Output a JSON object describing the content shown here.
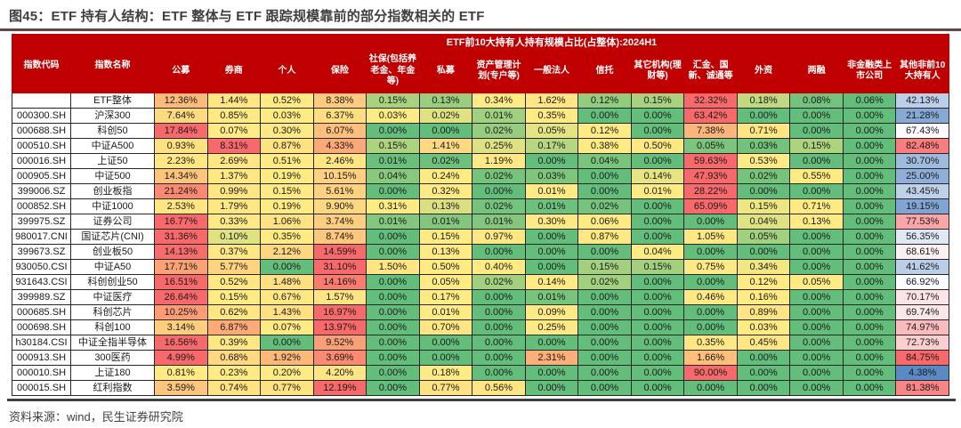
{
  "figure": {
    "title": "图45：ETF 持有人结构：ETF 整体与 ETF 跟踪规模靠前的部分指数相关的 ETF",
    "source": "资料来源：wind，民生证券研究院"
  },
  "chart_data": {
    "type": "table",
    "subtype": "heatmap-table",
    "span_header": "ETF前10大持有人持有规模占比(占整体):2024H1",
    "unit": "%",
    "columns": [
      "指数代码",
      "指数名称",
      "公募",
      "券商",
      "个人",
      "保险",
      "社保(包括养老金、年金等)",
      "私募",
      "资产管理计划(专户等)",
      "一般法人",
      "信托",
      "其它机构(理财等)",
      "汇金、国新、诚通等",
      "外资",
      "两融",
      "非金融类上市公司",
      "其他非前10大持有人"
    ],
    "rows": [
      {
        "code": "",
        "name": "ETF整体",
        "values": [
          12.36,
          1.44,
          0.52,
          8.38,
          0.15,
          0.13,
          0.34,
          1.62,
          0.12,
          0.15,
          32.32,
          0.18,
          0.08,
          0.06,
          42.13
        ]
      },
      {
        "code": "000300.SH",
        "name": "沪深300",
        "values": [
          7.64,
          0.85,
          0.03,
          6.37,
          0.03,
          0.02,
          0.01,
          0.35,
          0.0,
          0.0,
          63.42,
          0.0,
          0.0,
          0.0,
          21.28
        ]
      },
      {
        "code": "000688.SH",
        "name": "科创50",
        "values": [
          17.84,
          0.07,
          0.3,
          6.07,
          0.0,
          0.0,
          0.02,
          0.05,
          0.12,
          0.0,
          7.38,
          0.71,
          0.0,
          0.0,
          67.43
        ]
      },
      {
        "code": "000510.SH",
        "name": "中证A500",
        "values": [
          0.93,
          8.31,
          0.87,
          4.33,
          0.15,
          1.41,
          0.25,
          0.17,
          0.38,
          0.5,
          0.05,
          0.03,
          0.15,
          0.0,
          82.48
        ]
      },
      {
        "code": "000016.SH",
        "name": "上证50",
        "values": [
          2.23,
          2.69,
          0.51,
          2.46,
          0.01,
          0.02,
          1.19,
          0.0,
          0.04,
          0.0,
          59.63,
          0.53,
          0.0,
          0.0,
          30.7
        ]
      },
      {
        "code": "000905.SH",
        "name": "中证500",
        "values": [
          14.34,
          1.37,
          0.19,
          10.15,
          0.04,
          0.24,
          0.02,
          0.03,
          0.0,
          0.14,
          47.93,
          0.02,
          0.55,
          0.0,
          25.0
        ]
      },
      {
        "code": "399006.SZ",
        "name": "创业板指",
        "values": [
          21.24,
          0.99,
          0.15,
          5.61,
          0.0,
          0.32,
          0.0,
          0.01,
          0.0,
          0.01,
          28.22,
          0.0,
          0.0,
          0.0,
          43.45
        ]
      },
      {
        "code": "000852.SH",
        "name": "中证1000",
        "values": [
          2.53,
          1.79,
          0.19,
          9.9,
          0.31,
          0.13,
          0.02,
          0.01,
          0.02,
          0.0,
          65.09,
          0.15,
          0.71,
          0.0,
          19.15
        ]
      },
      {
        "code": "399975.SZ",
        "name": "证券公司",
        "values": [
          16.77,
          0.33,
          1.06,
          3.74,
          0.01,
          0.01,
          0.01,
          0.3,
          0.06,
          0.0,
          0.0,
          0.04,
          0.13,
          0.0,
          77.53
        ]
      },
      {
        "code": "980017.CNI",
        "name": "国证芯片(CNI)",
        "values": [
          31.36,
          0.1,
          0.35,
          8.74,
          0.0,
          0.15,
          0.97,
          0.0,
          0.87,
          0.0,
          1.05,
          0.05,
          0.0,
          0.0,
          56.35
        ]
      },
      {
        "code": "399673.SZ",
        "name": "创业板50",
        "values": [
          14.13,
          0.37,
          2.12,
          14.59,
          0.0,
          0.13,
          0.0,
          0.0,
          0.0,
          0.04,
          0.0,
          0.0,
          0.0,
          0.0,
          68.61
        ]
      },
      {
        "code": "930050.CSI",
        "name": "中证A50",
        "values": [
          17.71,
          5.77,
          0.0,
          31.1,
          1.5,
          0.5,
          0.4,
          0.0,
          0.15,
          0.15,
          0.75,
          0.34,
          0.0,
          0.0,
          41.62
        ]
      },
      {
        "code": "931643.CSI",
        "name": "科创创业50",
        "values": [
          16.51,
          0.52,
          1.48,
          14.16,
          0.0,
          0.05,
          0.02,
          0.14,
          0.02,
          0.0,
          0.0,
          0.12,
          0.05,
          0.0,
          66.92
        ]
      },
      {
        "code": "399989.SZ",
        "name": "中证医疗",
        "values": [
          26.64,
          0.15,
          0.67,
          1.57,
          0.0,
          0.17,
          0.0,
          0.01,
          0.0,
          0.0,
          0.46,
          0.16,
          0.0,
          0.0,
          70.17
        ]
      },
      {
        "code": "000685.SH",
        "name": "科创芯片",
        "values": [
          10.25,
          0.62,
          1.43,
          16.97,
          0.0,
          0.01,
          0.0,
          0.09,
          0.0,
          0.0,
          0.0,
          0.89,
          0.0,
          0.0,
          69.74
        ]
      },
      {
        "code": "000698.SH",
        "name": "科创100",
        "values": [
          3.14,
          6.87,
          0.07,
          13.97,
          0.0,
          0.7,
          0.0,
          0.25,
          0.0,
          0.0,
          0.0,
          0.03,
          0.0,
          0.0,
          74.97
        ]
      },
      {
        "code": "h30184.CSI",
        "name": "中证全指半导体",
        "values": [
          16.56,
          0.39,
          0.0,
          9.52,
          0.0,
          0.0,
          0.0,
          0.0,
          0.0,
          0.0,
          0.35,
          0.45,
          0.0,
          0.0,
          72.73
        ]
      },
      {
        "code": "000913.SH",
        "name": "300医药",
        "values": [
          4.99,
          0.68,
          1.92,
          3.69,
          0.0,
          0.0,
          0.0,
          2.31,
          0.0,
          0.0,
          1.66,
          0.0,
          0.0,
          0.0,
          84.75
        ]
      },
      {
        "code": "000010.SH",
        "name": "上证180",
        "values": [
          0.81,
          0.23,
          0.2,
          4.2,
          0.0,
          0.18,
          0.0,
          0.0,
          0.0,
          0.0,
          90.0,
          0.0,
          0.0,
          0.0,
          4.38
        ]
      },
      {
        "code": "000015.SH",
        "name": "红利指数",
        "values": [
          3.59,
          0.74,
          0.77,
          12.19,
          0.0,
          0.77,
          0.56,
          0.0,
          0.0,
          0.0,
          0.0,
          0.0,
          0.0,
          0.0,
          81.38
        ]
      }
    ],
    "heatmap": {
      "main_scale": {
        "mode": "per-row",
        "applies_to": "公募 … 非金融类上市公司",
        "low": "#63BE7B",
        "mid": "#FFEB84",
        "high": "#F8696B"
      },
      "last_col_scale": {
        "mode": "per-column",
        "applies_to": "其他非前10大持有人",
        "low": "#5A8AC6",
        "mid": "#FCFCFF",
        "high": "#F8696B"
      }
    },
    "style": {
      "header_bg": "#C00000",
      "header_text": "#FFFFFF",
      "grid_color": "#262626"
    },
    "layout": {
      "grid": "on",
      "value_format": "0.00%"
    }
  }
}
